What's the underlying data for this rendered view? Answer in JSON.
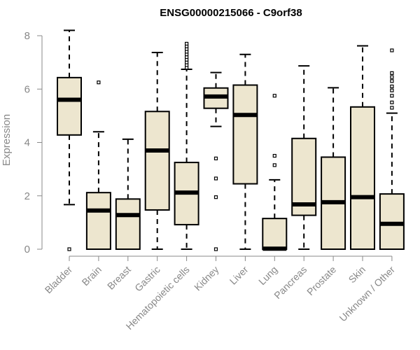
{
  "chart_data": {
    "type": "boxplot",
    "title": "ENSG00000215066 - C9orf38",
    "xlabel": "",
    "ylabel": "Expression",
    "ylim": [
      0,
      8.2
    ],
    "yticks": [
      0,
      2,
      4,
      6,
      8
    ],
    "colors": {
      "box_fill": "#ede6cf",
      "stroke": "#000000",
      "axis": "#888888"
    },
    "categories": [
      "Bladder",
      "Brain",
      "Breast",
      "Gastric",
      "Hematopoietic cells",
      "Kidney",
      "Liver",
      "Lung",
      "Pancreas",
      "Prostate",
      "Skin",
      "Unknown / Other"
    ],
    "boxes": [
      {
        "q1": 4.28,
        "median": 5.6,
        "q3": 6.43,
        "whisker_low": 1.67,
        "whisker_high": 8.2,
        "outliers": [
          0.0
        ]
      },
      {
        "q1": 0.0,
        "median": 1.45,
        "q3": 2.12,
        "whisker_low": 0.0,
        "whisker_high": 4.4,
        "outliers": [
          6.25
        ]
      },
      {
        "q1": 0.0,
        "median": 1.28,
        "q3": 1.88,
        "whisker_low": 0.0,
        "whisker_high": 4.12,
        "outliers": []
      },
      {
        "q1": 1.47,
        "median": 3.7,
        "q3": 5.16,
        "whisker_low": 0.0,
        "whisker_high": 7.37,
        "outliers": []
      },
      {
        "q1": 0.92,
        "median": 2.12,
        "q3": 3.25,
        "whisker_low": 0.0,
        "whisker_high": 6.74,
        "outliers": [
          6.8,
          6.9,
          7.0,
          7.1,
          7.2,
          7.3,
          7.4,
          7.5,
          7.6,
          7.7
        ]
      },
      {
        "q1": 5.28,
        "median": 5.72,
        "q3": 6.04,
        "whisker_low": 4.6,
        "whisker_high": 6.62,
        "outliers": [
          3.4,
          2.65,
          1.95,
          0.0
        ]
      },
      {
        "q1": 2.45,
        "median": 5.03,
        "q3": 6.15,
        "whisker_low": 0.0,
        "whisker_high": 7.3,
        "outliers": []
      },
      {
        "q1": 0.0,
        "median": 0.02,
        "q3": 1.15,
        "whisker_low": 0.0,
        "whisker_high": 2.6,
        "outliers": [
          3.15,
          3.5,
          5.75
        ]
      },
      {
        "q1": 1.27,
        "median": 1.68,
        "q3": 4.15,
        "whisker_low": 0.0,
        "whisker_high": 6.87,
        "outliers": []
      },
      {
        "q1": 0.0,
        "median": 1.76,
        "q3": 3.45,
        "whisker_low": 0.0,
        "whisker_high": 6.05,
        "outliers": []
      },
      {
        "q1": 0.0,
        "median": 1.95,
        "q3": 5.33,
        "whisker_low": 0.0,
        "whisker_high": 7.62,
        "outliers": []
      },
      {
        "q1": 0.0,
        "median": 0.95,
        "q3": 2.07,
        "whisker_low": 0.0,
        "whisker_high": 5.1,
        "outliers": [
          5.3,
          5.5,
          5.75,
          5.95,
          6.1,
          6.3,
          6.45,
          6.6,
          7.45
        ]
      }
    ]
  }
}
